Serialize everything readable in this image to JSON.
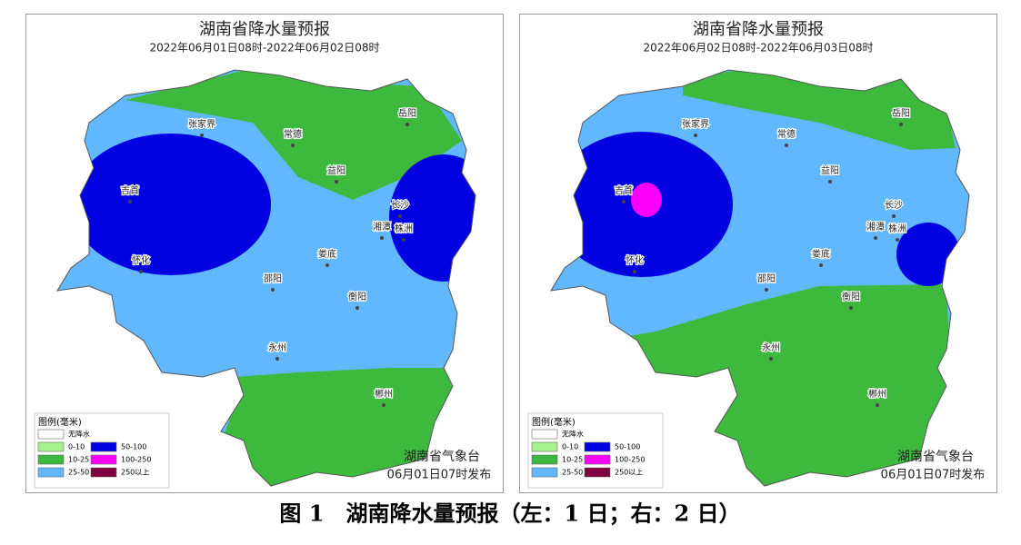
{
  "caption": "图 1　湖南降水量预报（左：1 日；右：2 日）",
  "maps": [
    {
      "title": "湖南省降水量预报",
      "period": "2022年06月01日08时-2022年06月02日08时",
      "cities": [
        "张家界",
        "常德",
        "岳阳",
        "益阳",
        "吉首",
        "长沙",
        "湘潭",
        "株洲",
        "怀化",
        "娄底",
        "邵阳",
        "衡阳",
        "永州",
        "郴州"
      ],
      "legend": {
        "title": "图例(毫米)",
        "items": [
          {
            "label": "无降水",
            "color": "#ffffff"
          },
          {
            "label": "0-10",
            "color": "#a6f28f"
          },
          {
            "label": "10-25",
            "color": "#3dba3d"
          },
          {
            "label": "25-50",
            "color": "#61b8ff"
          },
          {
            "label": "50-100",
            "color": "#0000e1"
          },
          {
            "label": "100-250",
            "color": "#fa00fa"
          },
          {
            "label": "250以上",
            "color": "#800040"
          }
        ]
      },
      "issuer": "湖南省气象台",
      "issued": "06月01日07时发布"
    },
    {
      "title": "湖南省降水量预报",
      "period": "2022年06月02日08时-2022年06月03日08时",
      "cities": [
        "张家界",
        "常德",
        "岳阳",
        "益阳",
        "吉首",
        "长沙",
        "湘潭",
        "株洲",
        "怀化",
        "娄底",
        "邵阳",
        "衡阳",
        "永州",
        "郴州"
      ],
      "legend": {
        "title": "图例(毫米)",
        "items": [
          {
            "label": "无降水",
            "color": "#ffffff"
          },
          {
            "label": "0-10",
            "color": "#a6f28f"
          },
          {
            "label": "10-25",
            "color": "#3dba3d"
          },
          {
            "label": "25-50",
            "color": "#61b8ff"
          },
          {
            "label": "50-100",
            "color": "#0000e1"
          },
          {
            "label": "100-250",
            "color": "#fa00fa"
          },
          {
            "label": "250以上",
            "color": "#800040"
          }
        ]
      },
      "issuer": "湖南省气象台",
      "issued": "06月01日07时发布"
    }
  ]
}
